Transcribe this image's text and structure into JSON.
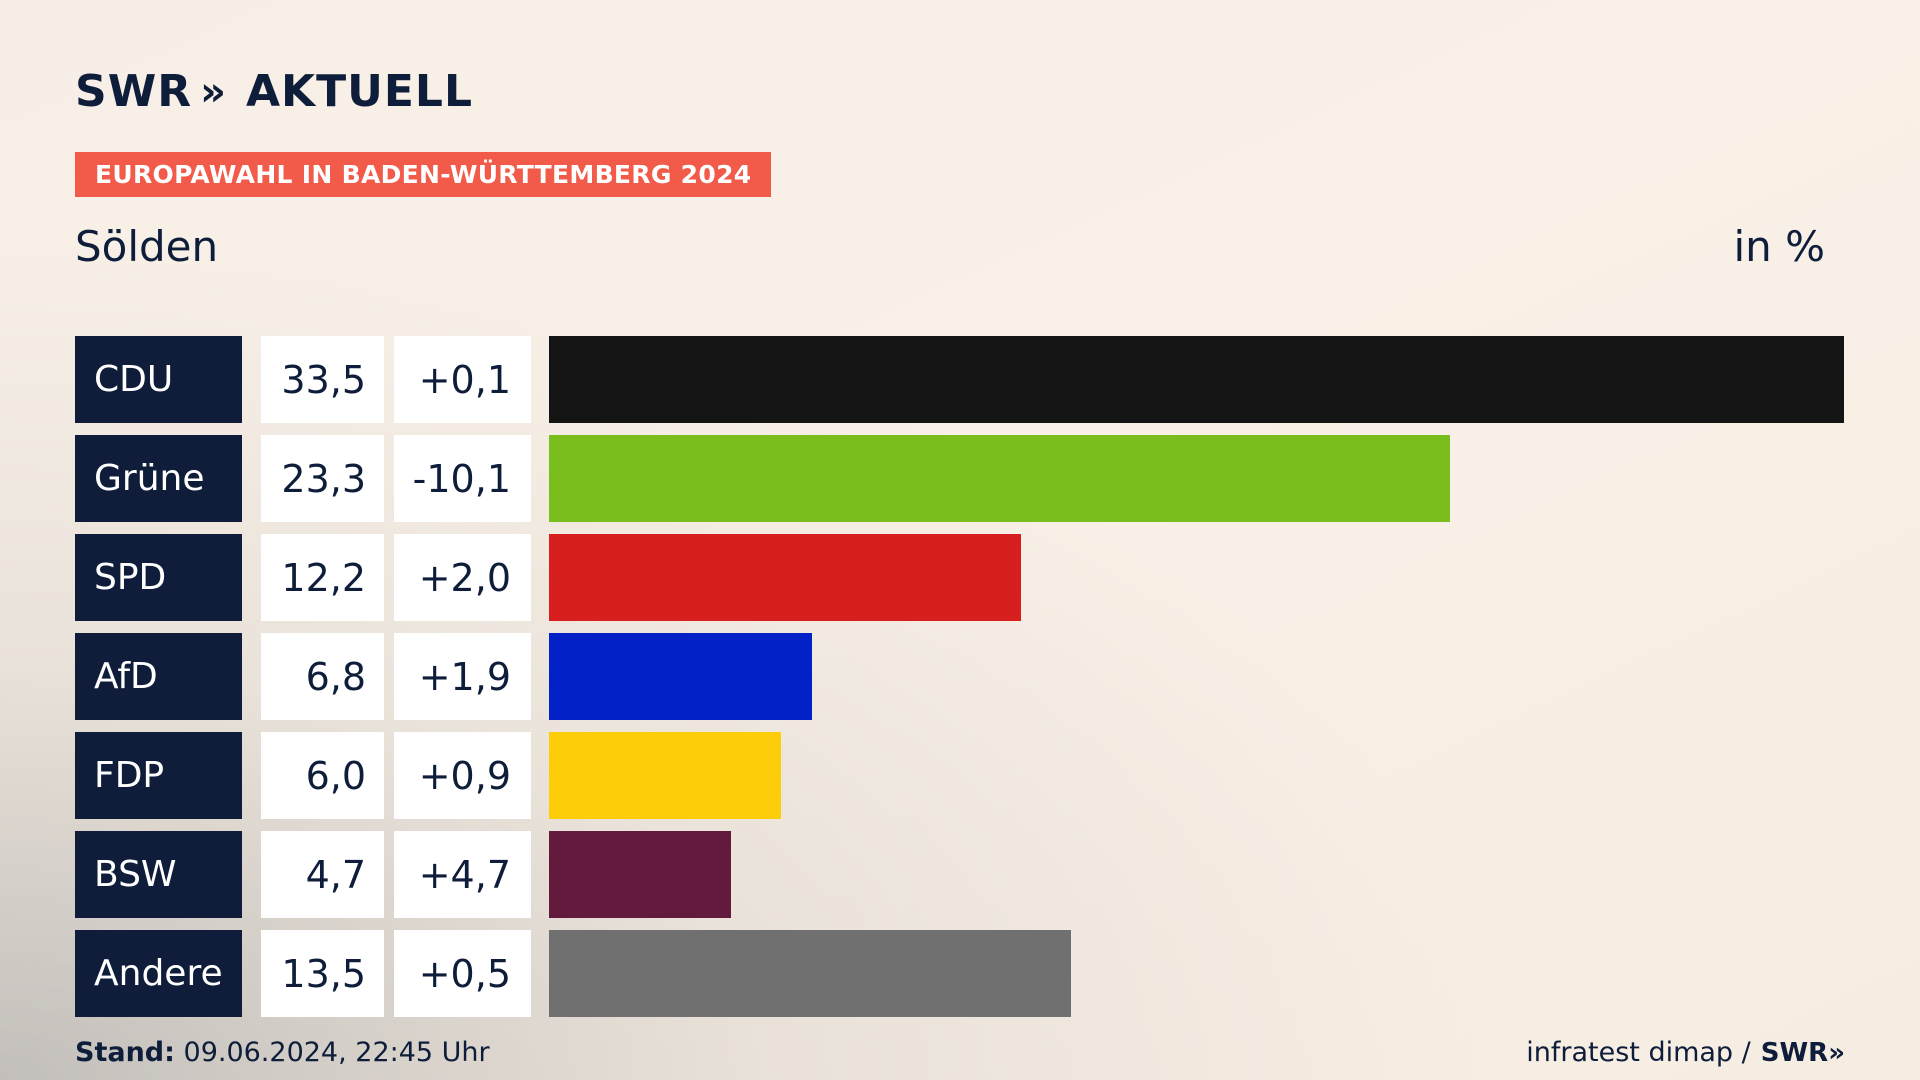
{
  "header": {
    "logo_text": "SWR",
    "logo_chevrons": "»",
    "logo_suffix": "AKTUELL",
    "banner": "EUROPAWAHL IN BADEN-WÜRTTEMBERG 2024",
    "region": "Sölden",
    "unit": "in %"
  },
  "chart_data": {
    "type": "bar",
    "orientation": "horizontal",
    "categories": [
      "CDU",
      "Grüne",
      "SPD",
      "AfD",
      "FDP",
      "BSW",
      "Andere"
    ],
    "values": [
      33.5,
      23.3,
      12.2,
      6.8,
      6.0,
      4.7,
      13.5
    ],
    "value_labels": [
      "33,5",
      "23,3",
      "12,2",
      "6,8",
      "6,0",
      "4,7",
      "13,5"
    ],
    "change_labels": [
      "+0,1",
      "-10,1",
      "+2,0",
      "+1,9",
      "+0,9",
      "+4,7",
      "+0,5"
    ],
    "colors": [
      "#141414",
      "#7abe1e",
      "#d81f1f",
      "#0222c8",
      "#fdcd0a",
      "#641a3d",
      "#707071"
    ],
    "xlim": [
      0,
      33.5
    ]
  },
  "footer": {
    "stand_label": "Stand:",
    "stand_value": "09.06.2024, 22:45 Uhr",
    "source": "infratest dimap /",
    "source_logo": "SWR»"
  }
}
